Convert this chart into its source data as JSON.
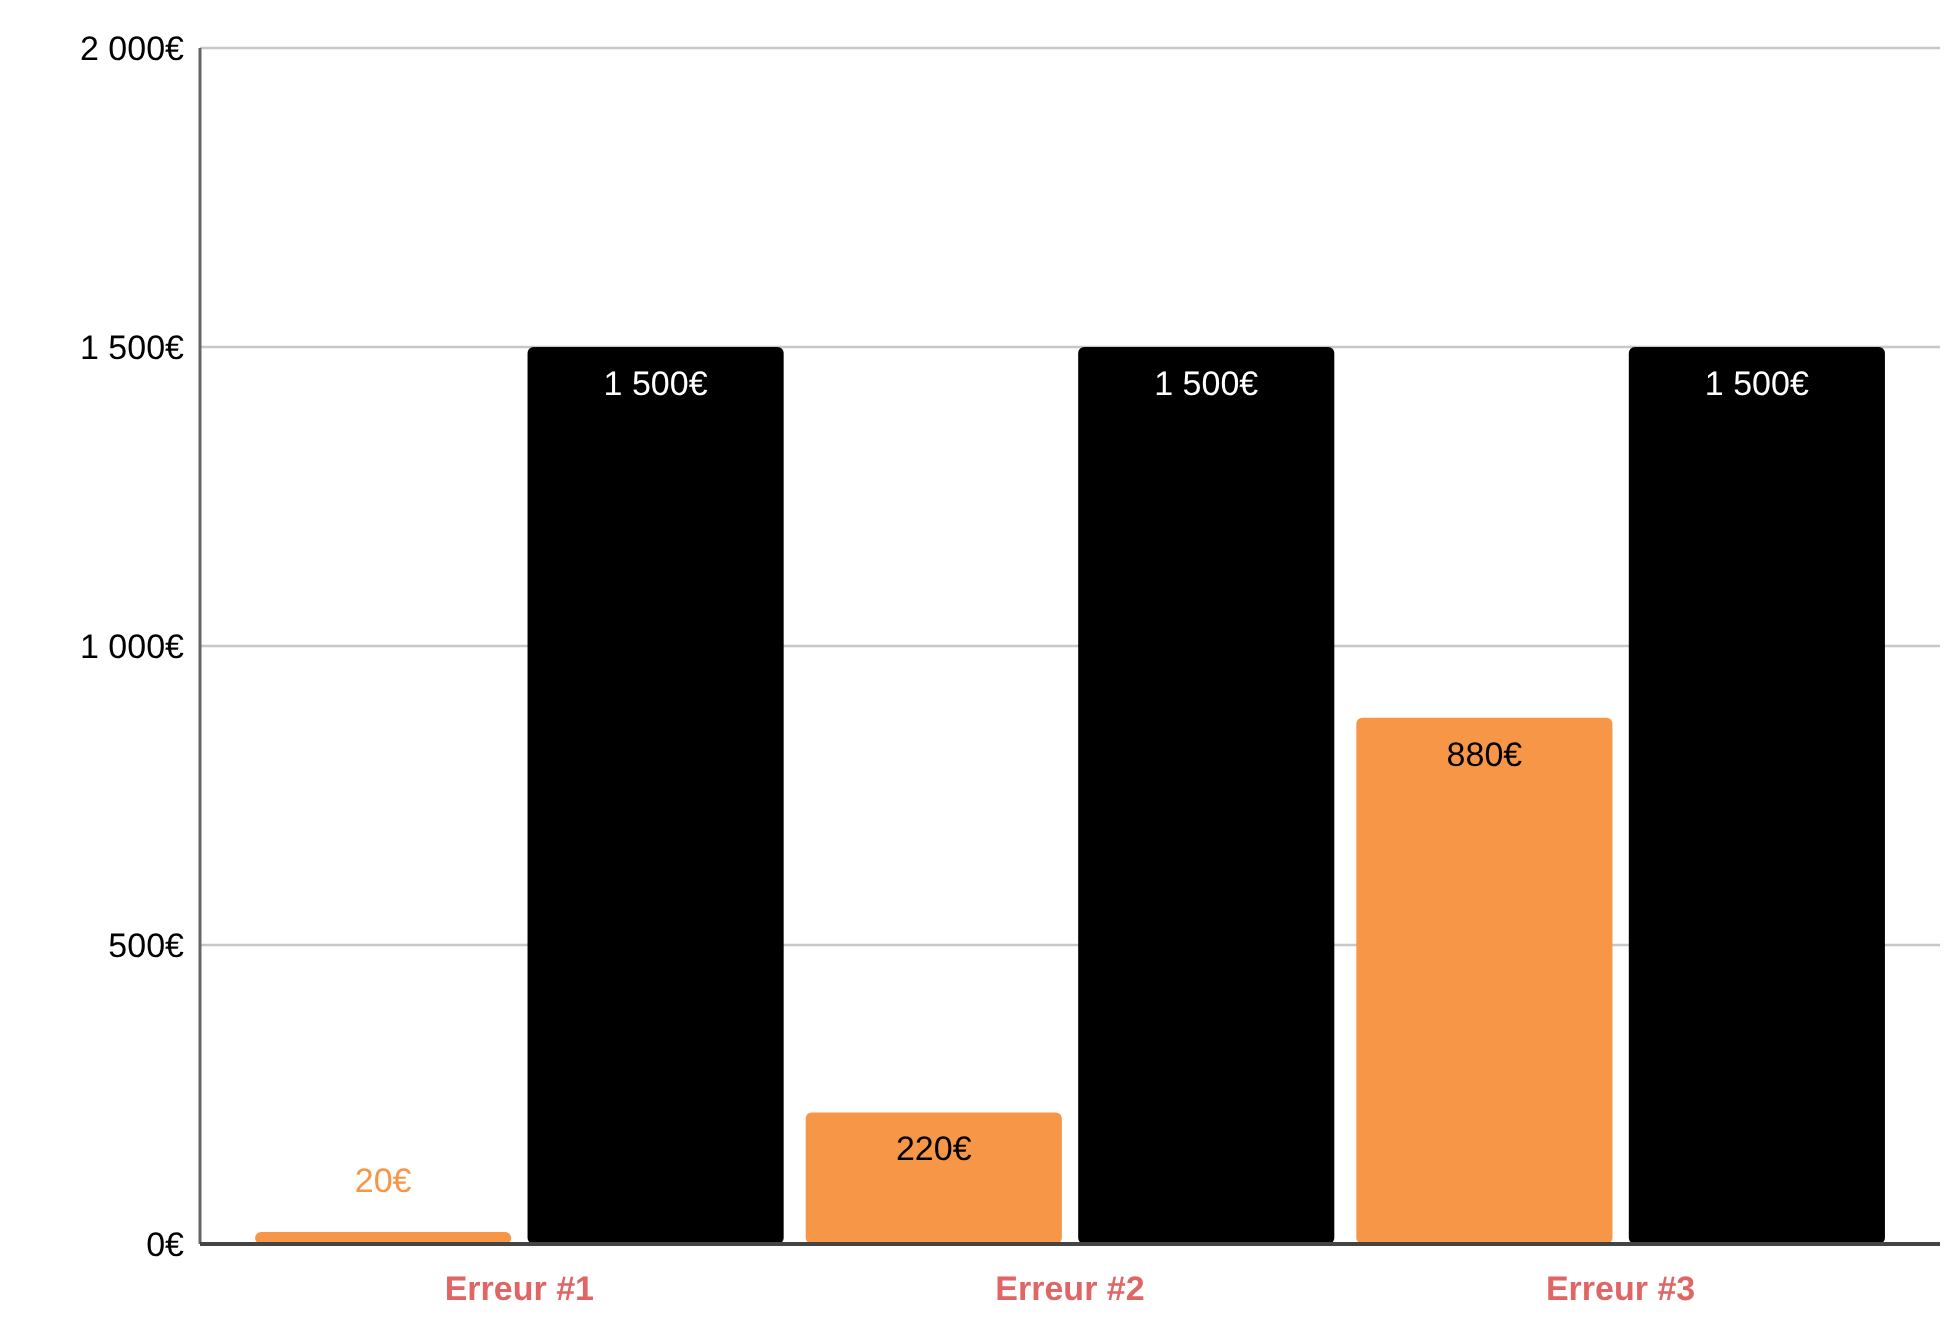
{
  "chart_data": {
    "type": "bar",
    "categories": [
      "Erreur #1",
      "Erreur #2",
      "Erreur #3"
    ],
    "series": [
      {
        "color": "#f79646",
        "values": [
          20,
          220,
          880
        ],
        "value_labels": [
          "20€",
          "220€",
          "880€"
        ]
      },
      {
        "color": "#000000",
        "values": [
          1500,
          1500,
          1500
        ],
        "value_labels": [
          "1 500€",
          "1 500€",
          "1 500€"
        ]
      }
    ],
    "ylim": [
      0,
      2000
    ],
    "yticks": [
      {
        "value": 0,
        "label": "0€"
      },
      {
        "value": 500,
        "label": "500€"
      },
      {
        "value": 1000,
        "label": "1 000€"
      },
      {
        "value": 1500,
        "label": "1 500€"
      },
      {
        "value": 2000,
        "label": "2 000€"
      }
    ],
    "grid": "y"
  }
}
